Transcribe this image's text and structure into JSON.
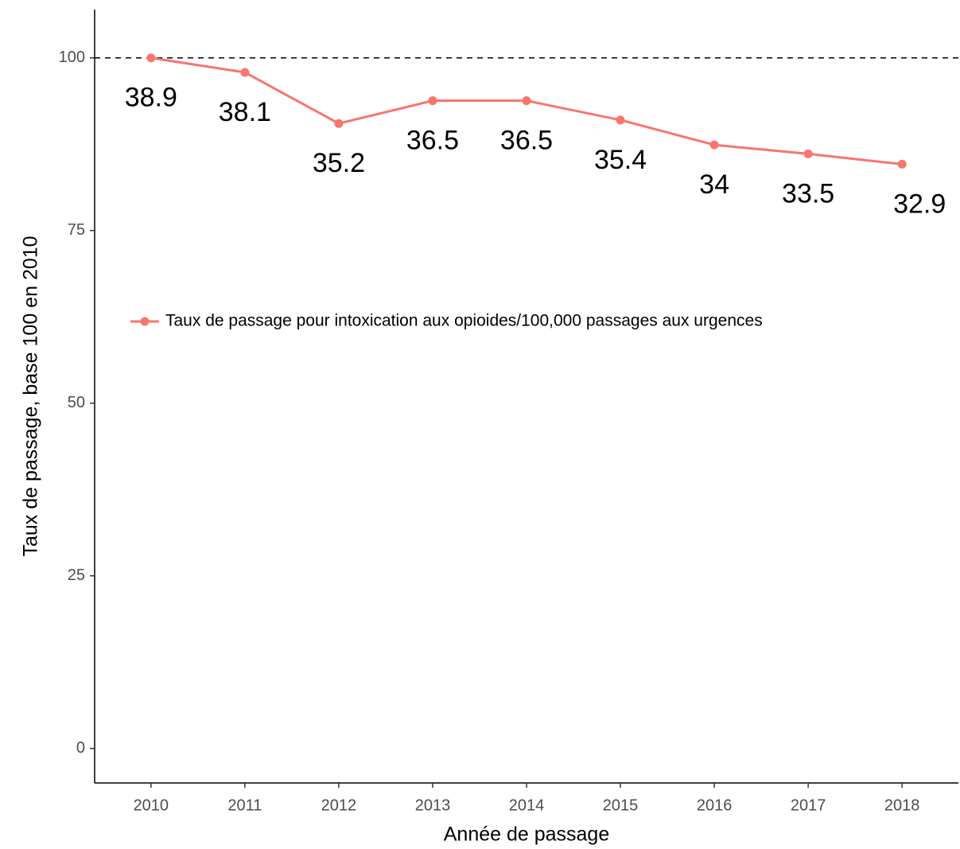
{
  "chart_data": {
    "type": "line",
    "xlabel": "Année de passage",
    "ylabel": "Taux de passage, base 100 en 2010",
    "categories": [
      "2010",
      "2011",
      "2012",
      "2013",
      "2014",
      "2015",
      "2016",
      "2017",
      "2018"
    ],
    "series": [
      {
        "name": "Taux de passage pour intoxication aux opioides/100,000 passages aux urgences",
        "color": "#f8766d",
        "values": [
          100,
          97.9,
          90.5,
          93.8,
          93.8,
          91.0,
          87.4,
          86.1,
          84.6
        ]
      }
    ],
    "annotations": [
      "38.9",
      "38.1",
      "35.2",
      "36.5",
      "36.5",
      "35.4",
      "34",
      "33.5",
      "32.9"
    ],
    "reference_line": 100,
    "ylim": [
      -5,
      107
    ],
    "yticks": [
      0,
      25,
      50,
      75,
      100
    ],
    "grid": false,
    "legend": "left"
  }
}
